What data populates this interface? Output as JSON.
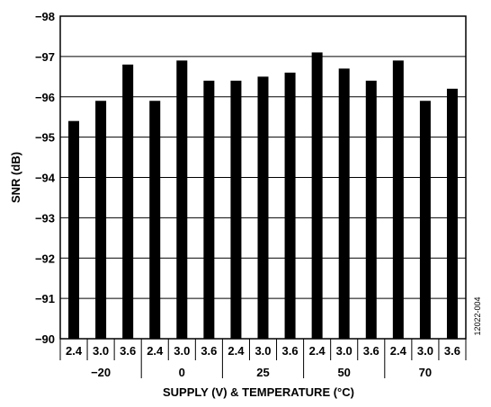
{
  "chart_data": {
    "type": "bar",
    "xlabel": "SUPPLY (V) & TEMPERATURE (°C)",
    "ylabel": "SNR (dB)",
    "ylim": [
      -90,
      -98
    ],
    "y_ticks": [
      "−98",
      "−97",
      "−96",
      "−95",
      "−94",
      "−93",
      "−92",
      "−91",
      "−90"
    ],
    "y_tick_values": [
      -98,
      -97,
      -96,
      -95,
      -94,
      -93,
      -92,
      -91,
      -90
    ],
    "grid": true,
    "groups": [
      {
        "temperature": "−20",
        "supplies": [
          "2.4",
          "3.0",
          "3.6"
        ],
        "values": [
          -95.4,
          -95.9,
          -96.8
        ]
      },
      {
        "temperature": "0",
        "supplies": [
          "2.4",
          "3.0",
          "3.6"
        ],
        "values": [
          -95.9,
          -96.9,
          -96.4
        ]
      },
      {
        "temperature": "25",
        "supplies": [
          "2.4",
          "3.0",
          "3.6"
        ],
        "values": [
          -96.4,
          -96.5,
          -96.6
        ]
      },
      {
        "temperature": "50",
        "supplies": [
          "2.4",
          "3.0",
          "3.6"
        ],
        "values": [
          -97.1,
          -96.7,
          -96.4
        ]
      },
      {
        "temperature": "70",
        "supplies": [
          "2.4",
          "3.0",
          "3.6"
        ],
        "values": [
          -96.9,
          -95.9,
          -96.2
        ]
      }
    ],
    "bar_color": "#000000",
    "figure_id": "12022-004"
  }
}
